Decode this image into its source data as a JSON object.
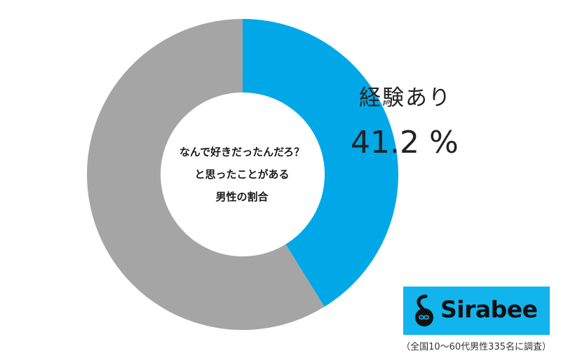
{
  "chart_data": {
    "type": "pie",
    "donut": true,
    "start_angle": "top",
    "direction": "clockwise",
    "center_text": [
      "なんで好きだったんだろ？",
      "と思ったことがある",
      "男性の割合"
    ],
    "slices": [
      {
        "label": "経験あり",
        "value": 41.2,
        "value_text": "41.2",
        "unit": "%",
        "color": "#00a8e8"
      },
      {
        "label": "",
        "value": 58.8,
        "color": "#a5a5a5"
      }
    ]
  },
  "logo": {
    "text": "Sirabee",
    "background": "#12b4ee"
  },
  "footnote": "（全国10～60代男性335名に調査）"
}
